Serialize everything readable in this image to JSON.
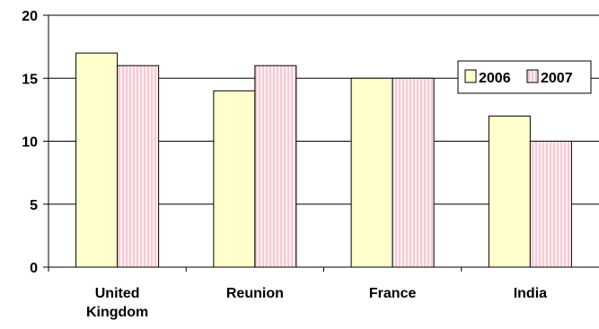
{
  "chart_data": {
    "type": "bar",
    "categories": [
      [
        "United",
        "Kingdom"
      ],
      [
        "Reunion"
      ],
      [
        "France"
      ],
      [
        "India"
      ]
    ],
    "series": [
      {
        "name": "2006",
        "values": [
          17,
          14,
          15,
          12
        ],
        "color": "#FFFFCC",
        "pattern": "solid"
      },
      {
        "name": "2007",
        "values": [
          16,
          16,
          15,
          10
        ],
        "color": "#FFE4E8",
        "pattern": "vertical-lines",
        "line_color": "#F080A0"
      }
    ],
    "y_ticks": [
      "0",
      "5",
      "10",
      "15",
      "20"
    ],
    "ylim": [
      0,
      20
    ],
    "grid": true,
    "legend": "right",
    "title": "",
    "xlabel": "",
    "ylabel": ""
  }
}
